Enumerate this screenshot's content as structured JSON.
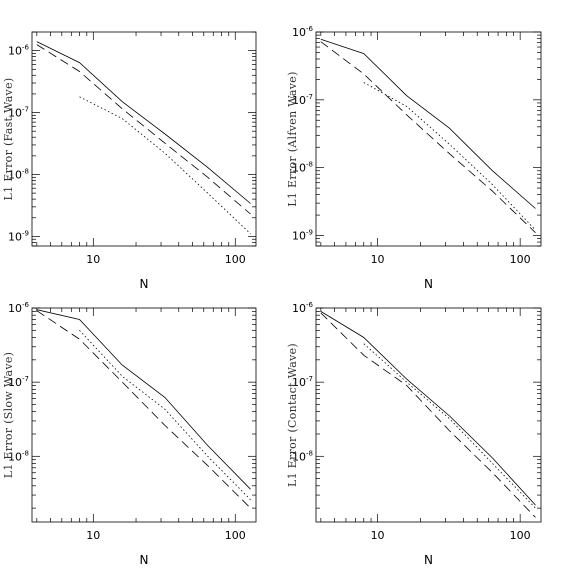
{
  "figure": {
    "xlabel": "N",
    "x_ticks": [
      {
        "value": 10,
        "label": "10"
      },
      {
        "value": 100,
        "label": "100"
      }
    ],
    "y_tick_base": "10"
  },
  "chart_data": [
    {
      "type": "line",
      "ylabel": "L1 Error (Fast Wave)",
      "xlabel": "N",
      "x_scale": "log",
      "y_scale": "log",
      "xlim": [
        3.7,
        140
      ],
      "ylim": [
        7e-10,
        2e-06
      ],
      "y_ticks": [
        {
          "value": 1e-06,
          "exp": "-6"
        },
        {
          "value": 1e-07,
          "exp": "-7"
        },
        {
          "value": 1e-08,
          "exp": "-8"
        },
        {
          "value": 1e-09,
          "exp": "-9"
        }
      ],
      "series": [
        {
          "style": "solid",
          "x": [
            4,
            8,
            16,
            32,
            64,
            128
          ],
          "y": [
            1.4e-06,
            6.4e-07,
            1.5e-07,
            4.5e-08,
            1.3e-08,
            3.4e-09
          ]
        },
        {
          "style": "dashed",
          "x": [
            4,
            8,
            16,
            32,
            64,
            128
          ],
          "y": [
            1.25e-06,
            4.6e-07,
            1.15e-07,
            3.2e-08,
            9e-09,
            2.3e-09
          ]
        },
        {
          "style": "dotted",
          "x": [
            8,
            16,
            32,
            64,
            128
          ],
          "y": [
            1.8e-07,
            8e-08,
            2.2e-08,
            5e-09,
            1.1e-09
          ]
        }
      ]
    },
    {
      "type": "line",
      "ylabel": "L1 Error (Alfven Wave)",
      "xlabel": "N",
      "x_scale": "log",
      "y_scale": "log",
      "xlim": [
        3.7,
        140
      ],
      "ylim": [
        7e-10,
        1e-06
      ],
      "y_ticks": [
        {
          "value": 1e-06,
          "exp": "-6"
        },
        {
          "value": 1e-07,
          "exp": "-7"
        },
        {
          "value": 1e-08,
          "exp": "-8"
        },
        {
          "value": 1e-09,
          "exp": "-9"
        }
      ],
      "series": [
        {
          "style": "solid",
          "x": [
            4,
            8,
            16,
            32,
            64,
            128
          ],
          "y": [
            7.8e-07,
            4.8e-07,
            1.15e-07,
            3.8e-08,
            9e-09,
            2.5e-09
          ]
        },
        {
          "style": "dashed",
          "x": [
            4,
            8,
            16,
            32,
            64,
            128
          ],
          "y": [
            7.2e-07,
            2.4e-07,
            6e-08,
            1.6e-08,
            4.5e-09,
            1.1e-09
          ]
        },
        {
          "style": "dotted",
          "x": [
            8,
            16,
            32,
            64,
            128
          ],
          "y": [
            1.8e-07,
            8e-08,
            2.2e-08,
            5.6e-09,
            1.2e-09
          ]
        }
      ]
    },
    {
      "type": "line",
      "ylabel": "L1 Error (Slow Wave)",
      "xlabel": "N",
      "x_scale": "log",
      "y_scale": "log",
      "xlim": [
        3.7,
        140
      ],
      "ylim": [
        1.3e-09,
        1e-06
      ],
      "y_ticks": [
        {
          "value": 1e-06,
          "exp": "-6"
        },
        {
          "value": 1e-07,
          "exp": "-7"
        },
        {
          "value": 1e-08,
          "exp": "-8"
        }
      ],
      "series": [
        {
          "style": "solid",
          "x": [
            4,
            8,
            16,
            32,
            64,
            128
          ],
          "y": [
            9.5e-07,
            7e-07,
            1.7e-07,
            6.2e-08,
            1.4e-08,
            3.6e-09
          ]
        },
        {
          "style": "dashed",
          "x": [
            4,
            8,
            16,
            32,
            64,
            128
          ],
          "y": [
            9.2e-07,
            3.8e-07,
            1e-07,
            2.6e-08,
            7.5e-09,
            2e-09
          ]
        },
        {
          "style": "dotted",
          "x": [
            8,
            16,
            32,
            64,
            128
          ],
          "y": [
            5e-07,
            1.2e-07,
            4.3e-08,
            1e-08,
            2.6e-09
          ]
        }
      ]
    },
    {
      "type": "line",
      "ylabel": "L1 Error (Contact Wave)",
      "xlabel": "N",
      "x_scale": "log",
      "y_scale": "log",
      "xlim": [
        3.7,
        140
      ],
      "ylim": [
        1.3e-09,
        1e-06
      ],
      "y_ticks": [
        {
          "value": 1e-06,
          "exp": "-6"
        },
        {
          "value": 1e-07,
          "exp": "-7"
        },
        {
          "value": 1e-08,
          "exp": "-8"
        }
      ],
      "series": [
        {
          "style": "solid",
          "x": [
            4,
            8,
            16,
            32,
            64,
            128
          ],
          "y": [
            9e-07,
            4e-07,
            1.1e-07,
            3.5e-08,
            9.5e-09,
            2.2e-09
          ]
        },
        {
          "style": "dashed",
          "x": [
            4,
            8,
            16,
            32,
            64,
            128
          ],
          "y": [
            8.6e-07,
            2.3e-07,
            9e-08,
            2.2e-08,
            6e-09,
            1.5e-09
          ]
        },
        {
          "style": "dotted",
          "x": [
            8,
            16,
            32,
            64,
            128
          ],
          "y": [
            3.3e-07,
            1e-07,
            3.2e-08,
            8e-09,
            2e-09
          ]
        }
      ]
    }
  ]
}
